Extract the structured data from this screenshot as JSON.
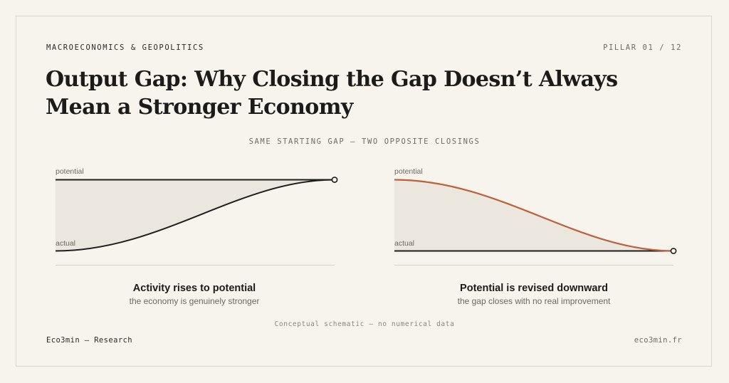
{
  "header": {
    "kicker": "MACROECONOMICS & GEOPOLITICS",
    "pillar": "PILLAR 01 / 12",
    "title": "Output Gap: Why Closing the Gap Doesn’t Always Mean a Stronger Economy",
    "subtitle": "SAME STARTING GAP — TWO OPPOSITE CLOSINGS"
  },
  "panels": [
    {
      "top_label": "potential",
      "bottom_label": "actual",
      "moving_line": "actual",
      "heading": "Activity rises to potential",
      "subheading": "the economy is genuinely stronger",
      "curve_color": "#1f1e1c"
    },
    {
      "top_label": "potential",
      "bottom_label": "actual",
      "moving_line": "potential",
      "heading": "Potential is revised downward",
      "subheading": "the gap closes with no real improvement",
      "curve_color": "#c0603b"
    }
  ],
  "colors": {
    "background": "#f7f4ee",
    "gap_fill": "#ebe7df",
    "ink": "#1f1e1c",
    "accent": "#c0603b"
  },
  "footer": {
    "note": "Conceptual schematic — no numerical data",
    "brand": "Eco3min — Research",
    "site": "eco3min.fr"
  }
}
